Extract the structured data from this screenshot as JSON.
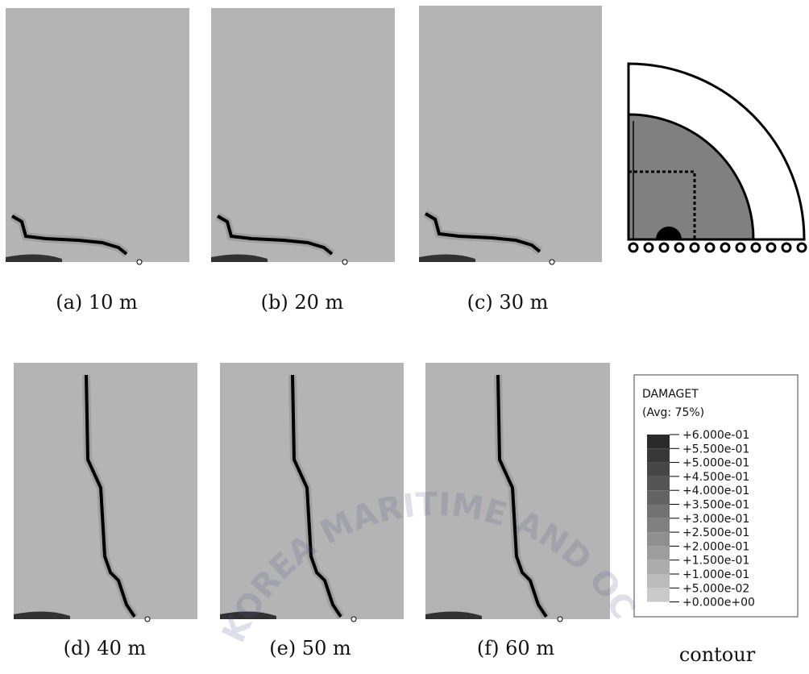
{
  "figure": {
    "panels": [
      {
        "caption": "(a) 10 m"
      },
      {
        "caption": "(b) 20 m"
      },
      {
        "caption": "(c) 30 m"
      },
      {
        "caption": "(d) 40 m"
      },
      {
        "caption": "(e) 50 m"
      },
      {
        "caption": "(f) 60 m"
      }
    ],
    "contour_caption": "contour",
    "legend": {
      "title": "DAMAGET",
      "subtitle": "(Avg: 75%)",
      "labels": [
        "+6.000e-01",
        "+5.500e-01",
        "+5.000e-01",
        "+4.500e-01",
        "+4.000e-01",
        "+3.500e-01",
        "+3.000e-01",
        "+2.500e-01",
        "+2.000e-01",
        "+1.500e-01",
        "+1.000e-01",
        "+5.000e-02",
        "+0.000e+00"
      ],
      "colors": [
        "#2a2a2a",
        "#383838",
        "#464646",
        "#555555",
        "#636363",
        "#727272",
        "#808080",
        "#8f8f8f",
        "#9d9d9d",
        "#acacac",
        "#bbbbbb",
        "#cacaca"
      ]
    },
    "watermark": "KOREA MARITIME AND OCEAN UNIVERSITY"
  }
}
